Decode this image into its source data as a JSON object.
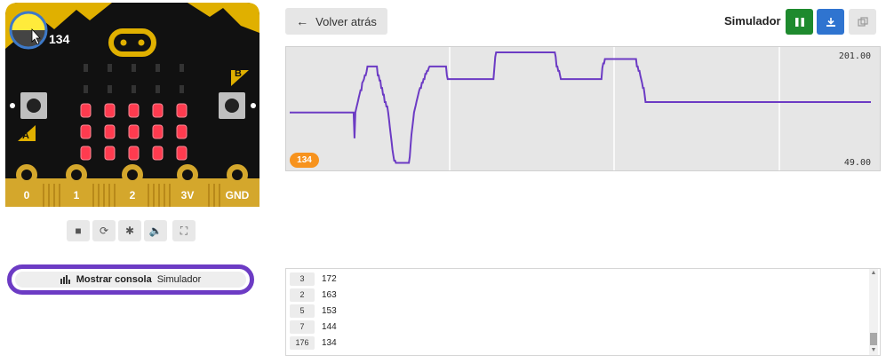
{
  "simulator": {
    "level_readout": "134",
    "button_a_label": "A",
    "button_b_label": "B",
    "pins": [
      "0",
      "1",
      "2",
      "3V",
      "GND"
    ],
    "led_matrix": [
      [
        0,
        0,
        0,
        0,
        0
      ],
      [
        0,
        0,
        0,
        0,
        0
      ],
      [
        1,
        1,
        1,
        1,
        1
      ],
      [
        1,
        1,
        1,
        1,
        1
      ],
      [
        1,
        1,
        1,
        1,
        1
      ]
    ],
    "tools": [
      {
        "name": "stop-icon",
        "glyph": "■"
      },
      {
        "name": "restart-icon",
        "glyph": "⟳"
      },
      {
        "name": "debug-icon",
        "glyph": "✱"
      },
      {
        "name": "volume-icon",
        "glyph": "🔈"
      },
      {
        "name": "fullscreen-icon",
        "glyph": "⛶"
      }
    ]
  },
  "console_toggle": {
    "label": "Mostrar consola",
    "source": "Simulador"
  },
  "toolbar": {
    "back_label": "Volver atrás",
    "title": "Simulador",
    "colors": {
      "pause": "#1e8a2e",
      "download": "#2f74d0",
      "copy": "#e6e6e6"
    }
  },
  "chart_data": {
    "type": "line",
    "title": "",
    "xlabel": "",
    "ylabel": "",
    "ylim": [
      49,
      201
    ],
    "y_max_label": "201.00",
    "y_min_label": "49.00",
    "series": [
      {
        "name": "134",
        "color": "#6c3bc4",
        "values": [
          120,
          120,
          120,
          120,
          120,
          120,
          120,
          120,
          120,
          120,
          120,
          120,
          120,
          120,
          120,
          120,
          120,
          120,
          120,
          120,
          120,
          120,
          120,
          120,
          120,
          120,
          120,
          120,
          120,
          120,
          120,
          120,
          120,
          120,
          120,
          120,
          120,
          120,
          120,
          120,
          120,
          120,
          120,
          120,
          120,
          120,
          120,
          120,
          120,
          120,
          120,
          120,
          120,
          120,
          120,
          120,
          120,
          120,
          120,
          120,
          120,
          120,
          120,
          120,
          120,
          120,
          120,
          120,
          120,
          120,
          120,
          120,
          120,
          120,
          120,
          85,
          120,
          125,
          130,
          135,
          140,
          145,
          150,
          150,
          160,
          162,
          165,
          170,
          170,
          175,
          182,
          182,
          182,
          182,
          182,
          182,
          182,
          182,
          182,
          182,
          182,
          182,
          170,
          170,
          163,
          163,
          153,
          153,
          144,
          144,
          134,
          134,
          128,
          128,
          120,
          110,
          100,
          90,
          80,
          70,
          62,
          55,
          55,
          52,
          52,
          52,
          52,
          52,
          52,
          52,
          52,
          52,
          52,
          52,
          52,
          52,
          52,
          52,
          52,
          60,
          75,
          90,
          100,
          110,
          120,
          125,
          130,
          135,
          140,
          145,
          150,
          153,
          153,
          160,
          160,
          165,
          165,
          172,
          172,
          176,
          176,
          180,
          182,
          182,
          182,
          182,
          182,
          182,
          182,
          182,
          182,
          182,
          182,
          182,
          182,
          182,
          182,
          182,
          182,
          182,
          182,
          182,
          170,
          165,
          165,
          165,
          165,
          165,
          165,
          165,
          165,
          165,
          165,
          165,
          165,
          165,
          165,
          165,
          165,
          165,
          165,
          165,
          165,
          165,
          165,
          165,
          165,
          165,
          165,
          165,
          165,
          165,
          165,
          165,
          165,
          165,
          165,
          165,
          165,
          165,
          165,
          165,
          165,
          165,
          165,
          165,
          165,
          165,
          165,
          165,
          165,
          165,
          165,
          165,
          165,
          165,
          165,
          180,
          195,
          201,
          201,
          201,
          201,
          201,
          201,
          201,
          201,
          201,
          201,
          201,
          201,
          201,
          201,
          201,
          201,
          201,
          201,
          201,
          201,
          201,
          201,
          201,
          201,
          201,
          201,
          201,
          201,
          201,
          201,
          201,
          201,
          201,
          201,
          201,
          201,
          201,
          201,
          201,
          201,
          201,
          201,
          201,
          201,
          201,
          201,
          201,
          201,
          201,
          201,
          201,
          201,
          201,
          201,
          201,
          201,
          201,
          201,
          201,
          201,
          201,
          201,
          201,
          201,
          201,
          201,
          201,
          201,
          201,
          195,
          182,
          182,
          176,
          176,
          170,
          165,
          165,
          165,
          165,
          165,
          165,
          165,
          165,
          165,
          165,
          165,
          165,
          165,
          165,
          165,
          165,
          165,
          165,
          165,
          165,
          165,
          165,
          165,
          165,
          165,
          165,
          165,
          165,
          165,
          165,
          165,
          165,
          165,
          165,
          165,
          165,
          165,
          165,
          165,
          165,
          165,
          165,
          165,
          165,
          165,
          165,
          165,
          165,
          180,
          186,
          186,
          192,
          192,
          192,
          192,
          192,
          192,
          192,
          192,
          192,
          192,
          192,
          192,
          192,
          192,
          192,
          192,
          192,
          192,
          192,
          192,
          192,
          192,
          192,
          192,
          192,
          192,
          192,
          192,
          192,
          192,
          192,
          192,
          192,
          192,
          192,
          192,
          192,
          182,
          182,
          176,
          176,
          170,
          165,
          160,
          153,
          153,
          144,
          134,
          134,
          134,
          134,
          134,
          134,
          134,
          134,
          134,
          134,
          134,
          134,
          134,
          134,
          134,
          134,
          134,
          134,
          134,
          134,
          134,
          134,
          134,
          134,
          134,
          134,
          134,
          134,
          134,
          134,
          134,
          134,
          134,
          134,
          134,
          134,
          134,
          134,
          134,
          134,
          134,
          134,
          134,
          134,
          134,
          134,
          134,
          134,
          134,
          134,
          134,
          134,
          134,
          134,
          134,
          134,
          134,
          134,
          134,
          134,
          134,
          134,
          134,
          134,
          134,
          134,
          134,
          134,
          134,
          134,
          134,
          134,
          134,
          134,
          134,
          134,
          134,
          134,
          134,
          134,
          134,
          134,
          134,
          134,
          134,
          134,
          134,
          134,
          134,
          134,
          134,
          134,
          134,
          134,
          134,
          134,
          134,
          134,
          134,
          134,
          134,
          134,
          134,
          134,
          134,
          134,
          134,
          134,
          134,
          134,
          134,
          134,
          134,
          134,
          134,
          134,
          134,
          134,
          134,
          134,
          134,
          134,
          134,
          134,
          134,
          134,
          134,
          134,
          134,
          134,
          134,
          134,
          134,
          134,
          134,
          134,
          134,
          134,
          134,
          134,
          134,
          134,
          134,
          134,
          134,
          134,
          134,
          134,
          134,
          134,
          134,
          134,
          134,
          134,
          134,
          134,
          134,
          134,
          134,
          134,
          134,
          134,
          134,
          134,
          134,
          134,
          134,
          134,
          134,
          134,
          134,
          134,
          134,
          134,
          134,
          134,
          134,
          134,
          134,
          134,
          134,
          134,
          134,
          134,
          134,
          134,
          134,
          134,
          134,
          134,
          134,
          134,
          134,
          134,
          134,
          134,
          134,
          134,
          134,
          134,
          134,
          134,
          134,
          134,
          134,
          134,
          134,
          134,
          134,
          134,
          134,
          134,
          134,
          134,
          134,
          134,
          134,
          134,
          134,
          134,
          134,
          134,
          134,
          134,
          134,
          134,
          134,
          134,
          134,
          134,
          134,
          134,
          134,
          134,
          134,
          134,
          134,
          134,
          134,
          134,
          134,
          134,
          134,
          134,
          134,
          134,
          134,
          134,
          134,
          134,
          134,
          134,
          134,
          134,
          134,
          134,
          134,
          134,
          134,
          134,
          134,
          134
        ]
      }
    ]
  },
  "console_log": {
    "rows": [
      {
        "count": "3",
        "value": "172"
      },
      {
        "count": "2",
        "value": "163"
      },
      {
        "count": "5",
        "value": "153"
      },
      {
        "count": "7",
        "value": "144"
      },
      {
        "count": "176",
        "value": "134"
      }
    ]
  }
}
